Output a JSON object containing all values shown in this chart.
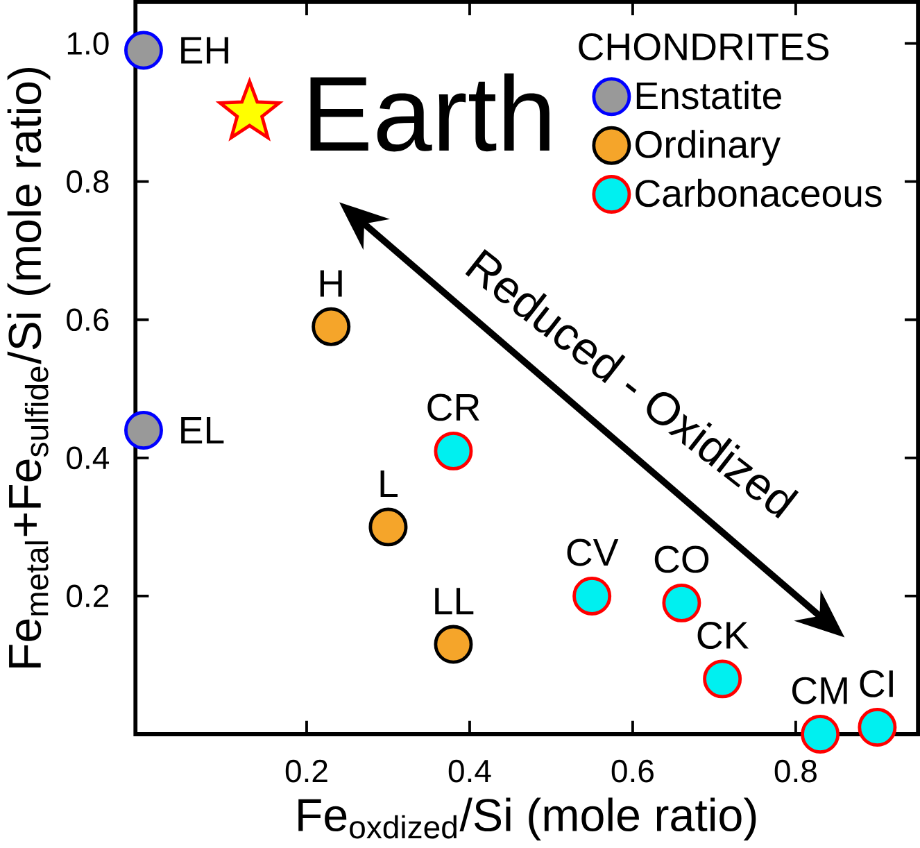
{
  "chart_data": {
    "type": "scatter",
    "xlabel": "Fe$_{oxdized}$/Si  (mole ratio)",
    "ylabel": "Fe$_{metal}$+Fe$_{sulfide}$/Si  (mole ratio)",
    "legend_title": "CHONDRITES",
    "legend": "top right",
    "xlim": [
      -0.01,
      0.95
    ],
    "ylim": [
      0,
      1.06
    ],
    "xticks": [
      0.2,
      0.4,
      0.6,
      0.8
    ],
    "yticks": [
      0.2,
      0.4,
      0.6,
      0.8,
      {
        "value": 1,
        "label": "1.0"
      }
    ],
    "series": [
      {
        "name": "Enstatite",
        "color": "#999999",
        "marker": "circle",
        "x": [
          0.0,
          0.0
        ],
        "values": [
          0.99,
          0.44
        ]
      },
      {
        "name": "Ordinary",
        "color": "#f5a52a",
        "marker": "circle",
        "x": [
          0.23,
          0.3,
          0.38
        ],
        "values": [
          0.59,
          0.3,
          0.13
        ]
      },
      {
        "name": "Carbonaceous",
        "color": "#00f0f0",
        "marker": "circle",
        "x": [
          0.38,
          0.55,
          0.66,
          0.71,
          0.83,
          0.9
        ],
        "values": [
          0.41,
          0.2,
          0.19,
          0.08,
          0.0,
          0.01
        ]
      },
      {
        "color": "#ffff00",
        "marker": "star",
        "x": [
          0.13
        ],
        "values": [
          0.9
        ]
      }
    ],
    "annotations": [
      {
        "text": "EH",
        "x": 0.0,
        "y": 0.99
      },
      {
        "text": "EL",
        "x": 0.0,
        "y": 0.44
      },
      {
        "text": "H",
        "x": 0.23,
        "y": 0.59
      },
      {
        "text": "L",
        "x": 0.3,
        "y": 0.3
      },
      {
        "text": "LL",
        "x": 0.38,
        "y": 0.13
      },
      {
        "text": "CR",
        "x": 0.38,
        "y": 0.41
      },
      {
        "text": "CV",
        "x": 0.55,
        "y": 0.2
      },
      {
        "text": "CO",
        "x": 0.66,
        "y": 0.19
      },
      {
        "text": "CK",
        "x": 0.71,
        "y": 0.08
      },
      {
        "text": "CM",
        "x": 0.83,
        "y": 0.0
      },
      {
        "text": "CI",
        "x": 0.9,
        "y": 0.01
      },
      {
        "text": "Earth",
        "x": 0.13,
        "y": 0.9
      },
      "Reduced - Oxidized"
    ]
  }
}
